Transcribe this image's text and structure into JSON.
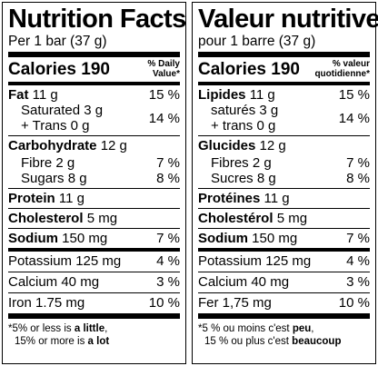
{
  "en": {
    "title": "Nutrition Facts",
    "serving": "Per 1 bar (37 g)",
    "calories_label": "Calories",
    "calories_value": "190",
    "dv_header_1": "% Daily",
    "dv_header_2": "Value*",
    "fat": {
      "label": "Fat",
      "amount": "11 g",
      "pct": "15 %"
    },
    "saturated": {
      "label": "Saturated 3 g",
      "trans": "+ Trans 0 g",
      "pct": "14 %"
    },
    "carb": {
      "label": "Carbohydrate",
      "amount": "12 g"
    },
    "fibre": {
      "label": "Fibre 2 g",
      "pct": "7 %"
    },
    "sugars": {
      "label": "Sugars 8 g",
      "pct": "8 %"
    },
    "protein": {
      "label": "Protein",
      "amount": "11 g"
    },
    "cholesterol": {
      "label": "Cholesterol",
      "amount": "5 mg"
    },
    "sodium": {
      "label": "Sodium",
      "amount": "150 mg",
      "pct": "7 %"
    },
    "potassium": {
      "label": "Potassium 125 mg",
      "pct": "4 %"
    },
    "calcium": {
      "label": "Calcium 40 mg",
      "pct": "3 %"
    },
    "iron": {
      "label": "Iron 1.75 mg",
      "pct": "10 %"
    },
    "foot_1a": "*5% or less is ",
    "foot_1b": "a little",
    "foot_1c": ",",
    "foot_2a": "15% or more is ",
    "foot_2b": "a lot"
  },
  "fr": {
    "title": "Valeur nutritive",
    "serving": "pour 1 barre (37 g)",
    "calories_label": "Calories",
    "calories_value": "190",
    "dv_header_1": "% valeur",
    "dv_header_2": "quotidienne*",
    "fat": {
      "label": "Lipides",
      "amount": "11 g",
      "pct": "15 %"
    },
    "saturated": {
      "label": "saturés 3 g",
      "trans": "+ trans 0 g",
      "pct": "14 %"
    },
    "carb": {
      "label": "Glucides",
      "amount": "12 g"
    },
    "fibre": {
      "label": "Fibres 2 g",
      "pct": "7 %"
    },
    "sugars": {
      "label": "Sucres 8 g",
      "pct": "8 %"
    },
    "protein": {
      "label": "Protéines",
      "amount": "11 g"
    },
    "cholesterol": {
      "label": "Cholestérol",
      "amount": "5 mg"
    },
    "sodium": {
      "label": "Sodium",
      "amount": "150 mg",
      "pct": "7 %"
    },
    "potassium": {
      "label": "Potassium 125 mg",
      "pct": "4 %"
    },
    "calcium": {
      "label": "Calcium 40 mg",
      "pct": "3 %"
    },
    "iron": {
      "label": "Fer 1,75 mg",
      "pct": "10 %"
    },
    "foot_1a": "*5 % ou moins c'est ",
    "foot_1b": "peu",
    "foot_1c": ",",
    "foot_2a": "15 % ou plus c'est ",
    "foot_2b": "beaucoup"
  }
}
